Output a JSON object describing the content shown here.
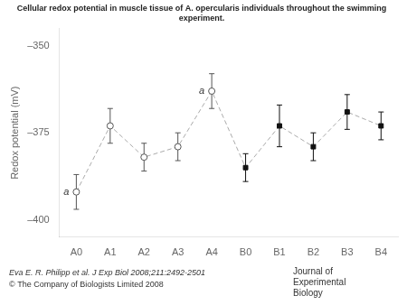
{
  "chart_data": {
    "type": "line",
    "title": [
      "Cellular redox potential in muscle tissue of A. opercularis individuals throughout the swimming",
      "experiment."
    ],
    "ylabel": "Redox potential (mV)",
    "categories": [
      "A0",
      "A1",
      "A2",
      "A3",
      "A4",
      "B0",
      "B1",
      "B2",
      "B3",
      "B4"
    ],
    "color": "#aaaaaa",
    "line_style": "dashed",
    "series": [
      {
        "values": [
          -392,
          -373,
          -382,
          -379,
          -363,
          null,
          null,
          null,
          null,
          null
        ],
        "errors": [
          5,
          5,
          4,
          4,
          5,
          null,
          null,
          null,
          null,
          null
        ],
        "marker": "open_circle",
        "color": "#555555"
      },
      {
        "values": [
          null,
          null,
          null,
          null,
          null,
          -385,
          -373,
          -379,
          -369,
          -373
        ],
        "errors": [
          null,
          null,
          null,
          null,
          null,
          4,
          6,
          4,
          5,
          4
        ],
        "marker": "filled_square",
        "color": "#111111"
      }
    ],
    "ylim": [
      -405,
      -345
    ],
    "yticks": [
      {
        "value": -400,
        "label": "–400"
      },
      {
        "value": -375,
        "label": "–375"
      },
      {
        "value": -350,
        "label": "–350"
      }
    ],
    "grid": false,
    "annotations": [
      {
        "text": "a",
        "category": "A0"
      },
      {
        "text": "a",
        "category": "A4"
      }
    ],
    "footnote": [
      "Eva E. R. Philipp et al. J Exp Biol 2008;211:2492-2501",
      "© The Company of Biologists Limited 2008"
    ],
    "logo": [
      "Journal of",
      "Experimental",
      "Biology"
    ]
  }
}
